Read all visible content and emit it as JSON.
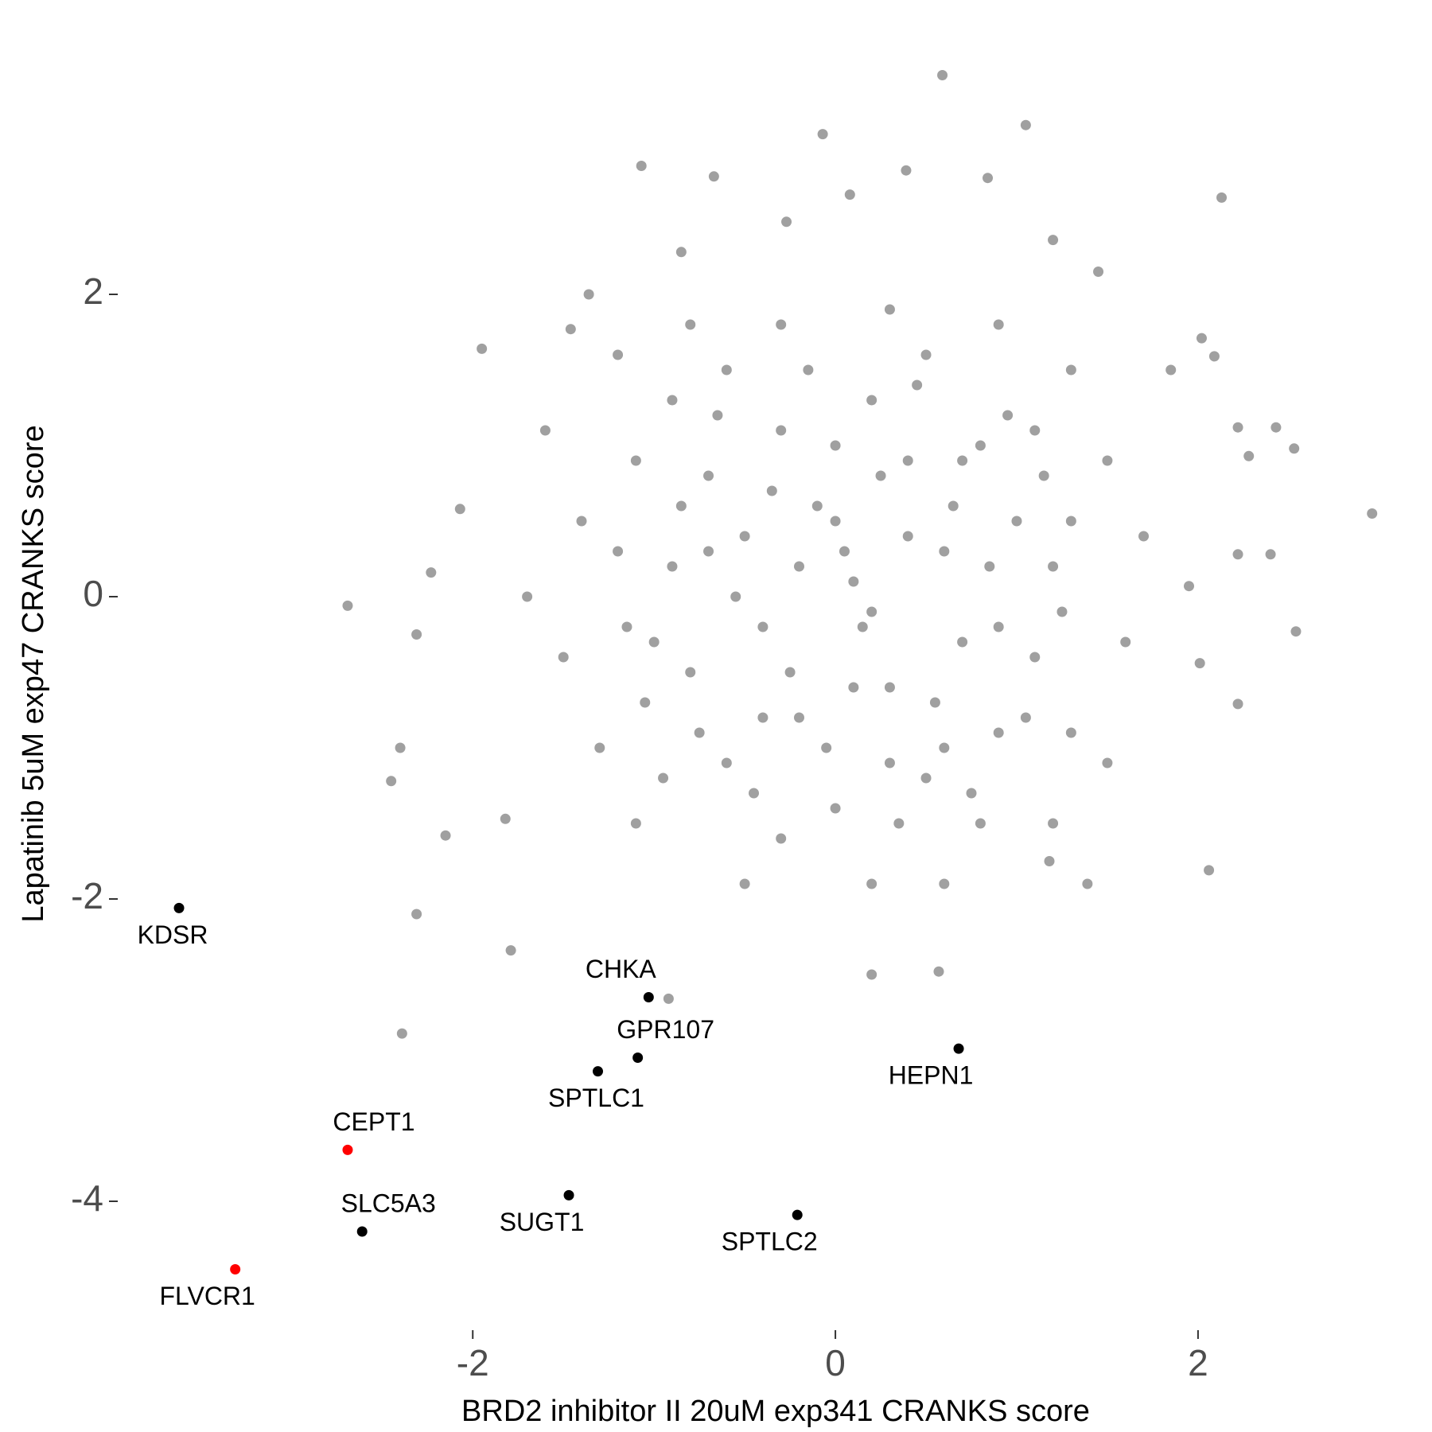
{
  "chart_data": {
    "type": "scatter",
    "x_label": "BRD2 inhibitor II 20uM exp341 CRANKS score",
    "y_label": "Lapatinib 5uM exp47 CRANKS score",
    "xlim": [
      -3.8,
      3.15
    ],
    "ylim": [
      -4.6,
      3.6
    ],
    "xticks": [
      -2,
      0,
      2
    ],
    "yticks": [
      -4,
      -2,
      0,
      2
    ],
    "grid": false,
    "series": [
      {
        "color": "#a0a0a0",
        "x": [
          -0.9,
          -0.8,
          -0.7,
          -0.6,
          -0.5,
          -0.4,
          -0.3,
          -0.2,
          -0.1,
          0,
          0.1,
          0.2,
          0.3,
          0.4,
          0.5,
          0.6,
          0.7,
          0.8,
          0.9,
          1.0,
          1.1,
          1.2,
          -1.0,
          -0.85,
          -0.75,
          -0.65,
          -0.55,
          -0.45,
          -0.35,
          -0.25,
          -0.15,
          -0.05,
          0.05,
          0.15,
          0.25,
          0.35,
          0.45,
          0.55,
          0.65,
          0.75,
          0.85,
          0.95,
          1.05,
          1.15,
          1.25,
          -1.1,
          -1.05,
          -0.95,
          -0.6,
          -0.3,
          0.0,
          0.3,
          0.5,
          0.8,
          1.1,
          1.3,
          1.3,
          -1.2,
          -1.15,
          -0.9,
          0.2,
          0.4,
          -0.2,
          0.6,
          -0.4,
          0.1,
          0.0,
          0.7,
          -0.7,
          0.9,
          -1.4,
          -1.5,
          -1.3,
          -1.6,
          1.5,
          1.6,
          1.5,
          -0.8,
          0.9,
          0.2,
          -0.5,
          0.6,
          1.7,
          -1.7,
          -1.2,
          1.3,
          -1.1,
          1.2,
          0.3,
          -0.3,
          0.59,
          1.05,
          -0.07,
          -1.07,
          -0.67,
          2.13,
          0.39,
          0.84,
          0.08,
          -0.27,
          -0.85,
          1.2,
          1.45,
          -1.36,
          -1.46,
          -1.95,
          2.02,
          2.09,
          2.22,
          2.43,
          2.53,
          2.96,
          2.54,
          2.22,
          2.06,
          1.39,
          -2.69,
          -2.31,
          -2.45,
          -2.4,
          -2.15,
          -2.31,
          -2.39,
          -1.79,
          -1.82,
          -2.07,
          -2.23,
          -0.92,
          0.2,
          0.57,
          1.18,
          2.01,
          1.95,
          2.4,
          2.22,
          2.28,
          1.85
        ],
        "y": [
          0.2,
          -0.5,
          0.8,
          -1.1,
          0.4,
          -0.2,
          1.1,
          -0.8,
          0.6,
          -1.4,
          0.1,
          1.3,
          -0.6,
          0.9,
          -1.2,
          0.3,
          -0.3,
          1.0,
          -0.9,
          0.5,
          -0.4,
          0.2,
          -0.3,
          0.6,
          -0.9,
          1.2,
          0,
          -1.3,
          0.7,
          -0.5,
          1.5,
          -1.0,
          0.3,
          -0.2,
          0.8,
          -1.5,
          1.4,
          -0.7,
          0.6,
          -1.3,
          0.2,
          1.2,
          -0.8,
          0.8,
          -0.1,
          0.9,
          -0.7,
          -1.2,
          1.5,
          -1.6,
          1.0,
          -1.1,
          1.6,
          -1.5,
          1.1,
          0.5,
          -0.9,
          0.3,
          -0.2,
          1.3,
          -0.1,
          0.4,
          0.2,
          -1.0,
          -0.8,
          -0.6,
          0.5,
          0.9,
          0.3,
          -0.2,
          0.5,
          -0.4,
          -1.0,
          1.1,
          0.9,
          -0.3,
          -1.1,
          1.8,
          1.8,
          -1.9,
          -1.9,
          -1.9,
          0.4,
          0.0,
          1.6,
          1.5,
          -1.5,
          -1.5,
          1.9,
          1.8,
          3.45,
          3.12,
          3.06,
          2.85,
          2.78,
          2.64,
          2.82,
          2.77,
          2.66,
          2.48,
          2.28,
          2.36,
          2.15,
          2.0,
          1.77,
          1.64,
          1.71,
          1.59,
          1.12,
          1.12,
          0.98,
          0.55,
          -0.23,
          -0.71,
          -1.81,
          -1.9,
          -0.06,
          -0.25,
          -1.22,
          -1.0,
          -1.58,
          -2.1,
          -2.89,
          -2.34,
          -1.47,
          0.58,
          0.16,
          -2.66,
          -2.5,
          -2.48,
          -1.75,
          -0.44,
          0.07,
          0.28,
          0.28,
          0.93,
          1.5
        ]
      },
      {
        "color": "#000000",
        "labels": [
          "KDSR",
          "CHKA",
          "GPR107",
          "SPTLC1",
          "HEPN1",
          "SUGT1",
          "SPTLC2",
          "SLC5A3"
        ],
        "x": [
          -3.62,
          -1.03,
          -1.09,
          -1.31,
          0.68,
          -1.47,
          -0.21,
          -2.61
        ],
        "y": [
          -2.06,
          -2.65,
          -3.05,
          -3.14,
          -2.99,
          -3.96,
          -4.09,
          -4.2
        ]
      },
      {
        "color": "#ff0000",
        "labels": [
          "CEPT1",
          "FLVCR1"
        ],
        "x": [
          -2.69,
          -3.31
        ],
        "y": [
          -3.66,
          -4.45
        ]
      }
    ]
  }
}
